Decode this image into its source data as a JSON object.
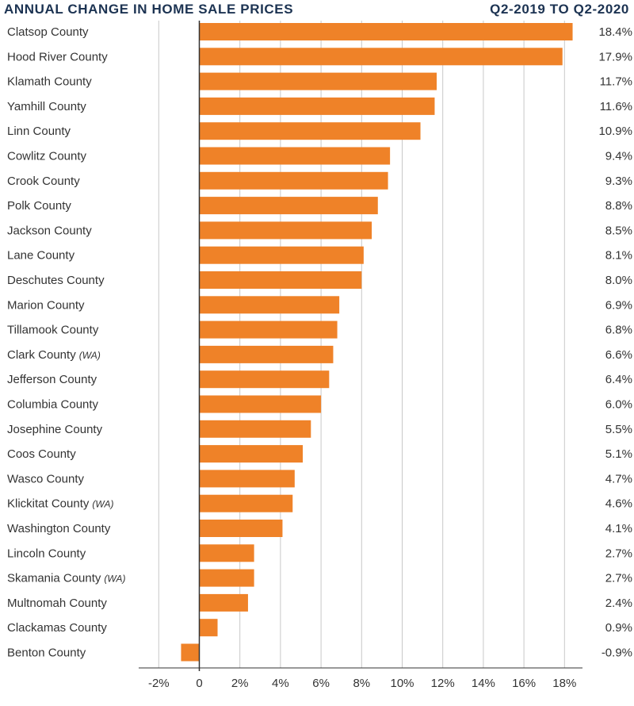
{
  "header": {
    "title": "ANNUAL CHANGE IN HOME SALE PRICES",
    "period": "Q2-2019 TO Q2-2020"
  },
  "colors": {
    "bar": "#ef8228",
    "title": "#1c3352",
    "grid": "#c8c8c8",
    "axis": "#333333",
    "text": "#333333"
  },
  "chart_data": {
    "type": "bar",
    "orientation": "horizontal",
    "title": "ANNUAL CHANGE IN HOME SALE PRICES",
    "subtitle": "Q2-2019 TO Q2-2020",
    "categories": [
      {
        "name": "Clatsop County",
        "note": ""
      },
      {
        "name": "Hood River County",
        "note": ""
      },
      {
        "name": "Klamath County",
        "note": ""
      },
      {
        "name": "Yamhill County",
        "note": ""
      },
      {
        "name": "Linn County",
        "note": ""
      },
      {
        "name": "Cowlitz County",
        "note": ""
      },
      {
        "name": "Crook County",
        "note": ""
      },
      {
        "name": "Polk County",
        "note": ""
      },
      {
        "name": "Jackson County",
        "note": ""
      },
      {
        "name": "Lane County",
        "note": ""
      },
      {
        "name": "Deschutes County",
        "note": ""
      },
      {
        "name": "Marion County",
        "note": ""
      },
      {
        "name": "Tillamook County",
        "note": ""
      },
      {
        "name": "Clark County",
        "note": "(WA)"
      },
      {
        "name": "Jefferson County",
        "note": ""
      },
      {
        "name": "Columbia County",
        "note": ""
      },
      {
        "name": "Josephine County",
        "note": ""
      },
      {
        "name": "Coos County",
        "note": ""
      },
      {
        "name": "Wasco County",
        "note": ""
      },
      {
        "name": "Klickitat County",
        "note": "(WA)"
      },
      {
        "name": "Washington County",
        "note": ""
      },
      {
        "name": "Lincoln County",
        "note": ""
      },
      {
        "name": "Skamania County",
        "note": "(WA)"
      },
      {
        "name": "Multnomah County",
        "note": ""
      },
      {
        "name": "Clackamas County",
        "note": ""
      },
      {
        "name": "Benton County",
        "note": ""
      }
    ],
    "values": [
      18.4,
      17.9,
      11.7,
      11.6,
      10.9,
      9.4,
      9.3,
      8.8,
      8.5,
      8.1,
      8.0,
      6.9,
      6.8,
      6.6,
      6.4,
      6.0,
      5.5,
      5.1,
      4.7,
      4.6,
      4.1,
      2.7,
      2.7,
      2.4,
      0.9,
      -0.9
    ],
    "value_labels": [
      "18.4%",
      "17.9%",
      "11.7%",
      "11.6%",
      "10.9%",
      "9.4%",
      "9.3%",
      "8.8%",
      "8.5%",
      "8.1%",
      "8.0%",
      "6.9%",
      "6.8%",
      "6.6%",
      "6.4%",
      "6.0%",
      "5.5%",
      "5.1%",
      "4.7%",
      "4.6%",
      "4.1%",
      "2.7%",
      "2.7%",
      "2.4%",
      "0.9%",
      "-0.9%"
    ],
    "xlim": [
      -2,
      18
    ],
    "xticks": [
      -2,
      0,
      2,
      4,
      6,
      8,
      10,
      12,
      14,
      16,
      18
    ],
    "xtick_labels": [
      "-2%",
      "0",
      "2%",
      "4%",
      "6%",
      "8%",
      "10%",
      "12%",
      "14%",
      "16%",
      "18%"
    ],
    "grid": true,
    "xlabel": "",
    "ylabel": ""
  }
}
